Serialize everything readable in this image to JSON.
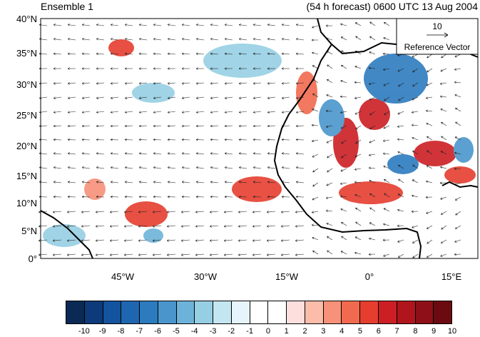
{
  "header": {
    "left_title": "Ensemble 1",
    "right_title": "(54 h forecast) 0600 UTC 13 Aug 2004"
  },
  "map": {
    "lat_labels": [
      "40°N",
      "35°N",
      "30°N",
      "25°N",
      "20°N",
      "15°N",
      "10°N",
      "5°N",
      "0°"
    ],
    "lon_labels": [
      "45°W",
      "30°W",
      "15°W",
      "0°",
      "15°E"
    ],
    "reference_vector": {
      "value": "10",
      "label": "Reference Vector"
    }
  },
  "colorbar": {
    "labels": [
      "-10",
      "-9",
      "-8",
      "-7",
      "-6",
      "-5",
      "-4",
      "-3",
      "-2",
      "-1",
      "0",
      "1",
      "2",
      "3",
      "4",
      "5",
      "6",
      "7",
      "8",
      "9",
      "10"
    ],
    "colors": [
      "#0a2a55",
      "#0d3a7a",
      "#14539e",
      "#1f66b0",
      "#2c7bbf",
      "#4a96cc",
      "#6db3d9",
      "#96cfe3",
      "#c3e6f1",
      "#e6f5fb",
      "#ffffff",
      "#ffffff",
      "#fde0dd",
      "#fbbcaa",
      "#f7917a",
      "#f16a4f",
      "#e53e2f",
      "#cc1f24",
      "#b0151d",
      "#8e0f17",
      "#6b0a10"
    ]
  }
}
